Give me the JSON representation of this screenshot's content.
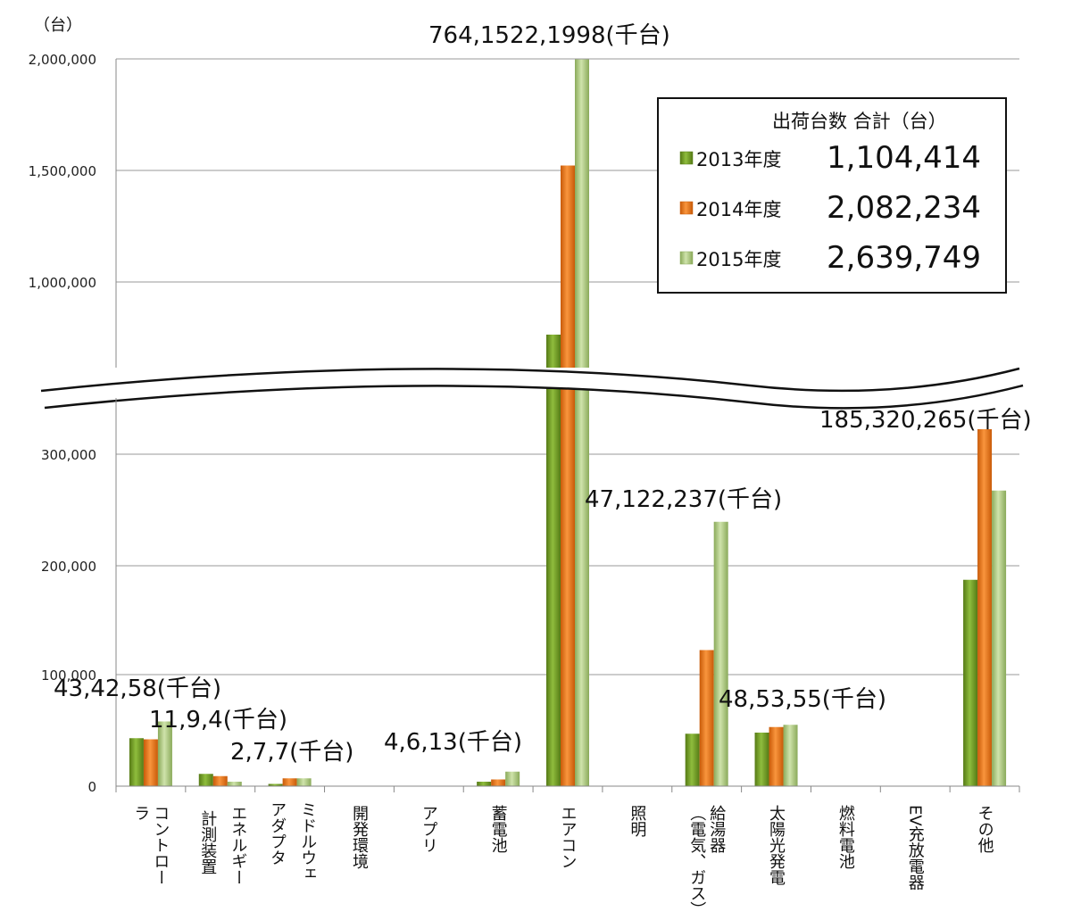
{
  "chart_data": {
    "type": "bar",
    "y_unit": "（台）",
    "y_ticks_upper": [
      "1,000,000",
      "1,500,000",
      "2,000,000"
    ],
    "y_ticks_lower": [
      "0",
      "100,000",
      "200,000",
      "300,000"
    ],
    "axis_break": true,
    "ylim_lower": [
      0,
      350000
    ],
    "ylim_upper": [
      600000,
      2000000
    ],
    "grid": true,
    "categories": [
      "コントローラ",
      "計測装置",
      "エネルギー",
      "アダプタ",
      "ミドルウェ",
      "開発環境",
      "アプリ",
      "蓄電池",
      "エアコン",
      "照明",
      "給湯器（電気、ガス）",
      "太陽光発電",
      "燃料電池",
      "EV充放電器",
      "その他"
    ],
    "category_lines": [
      [
        "コントロー",
        "ラ"
      ],
      [
        "計測装置"
      ],
      [
        "エネルギー"
      ],
      [
        "アダプタ"
      ],
      [
        "ミドルウェ"
      ],
      [
        "開発環境"
      ],
      [
        "アプリ"
      ],
      [
        "蓄電池"
      ],
      [
        "エアコン"
      ],
      [
        "照明"
      ],
      [
        "給湯器",
        "（電気、ガス）"
      ],
      [
        "太陽光発電"
      ],
      [
        "燃料電池"
      ],
      [
        "EV充放電器"
      ],
      [
        "その他"
      ]
    ],
    "slots": [
      {
        "category": "コントローラ",
        "group_index": 0,
        "values": [
          43000,
          42000,
          58000
        ]
      },
      {
        "category": "計測装置",
        "group_index": 1,
        "values": [
          11000,
          9000,
          4000
        ]
      },
      {
        "category": "エネルギー",
        "group_index": 1,
        "values": [
          0,
          0,
          0
        ]
      },
      {
        "category": "アダプタ",
        "group_index": 2,
        "values": [
          2000,
          7000,
          7000
        ]
      },
      {
        "category": "ミドルウェ",
        "group_index": 2,
        "values": [
          0,
          0,
          0
        ]
      },
      {
        "category": "開発環境",
        "group_index": 3,
        "values": [
          0,
          0,
          0
        ]
      },
      {
        "category": "アプリ",
        "group_index": 4,
        "values": [
          0,
          0,
          0
        ]
      },
      {
        "category": "蓄電池",
        "group_index": 5,
        "values": [
          4000,
          6000,
          13000
        ]
      },
      {
        "category": "エアコン",
        "group_index": 6,
        "values": [
          764000,
          1522000,
          1998000
        ]
      },
      {
        "category": "照明",
        "group_index": 7,
        "values": [
          0,
          0,
          0
        ]
      },
      {
        "category": "給湯器（電気、ガス）",
        "group_index": 8,
        "values": [
          47000,
          122000,
          237000
        ]
      },
      {
        "category": "太陽光発電",
        "group_index": 9,
        "values": [
          48000,
          53000,
          55000
        ]
      },
      {
        "category": "燃料電池",
        "group_index": 10,
        "values": [
          0,
          0,
          0
        ]
      },
      {
        "category": "EV充放電器",
        "group_index": 11,
        "values": [
          0,
          0,
          0
        ]
      },
      {
        "category": "その他",
        "group_index": 12,
        "values": [
          185000,
          320000,
          265000
        ]
      }
    ],
    "series": [
      {
        "name": "2013年度",
        "color": "#6f9a25"
      },
      {
        "name": "2014年度",
        "color": "#e8761c"
      },
      {
        "name": "2015年度",
        "color": "#a9c77a"
      }
    ],
    "annotations": [
      "764,1522,1998(千台)",
      "185,320,265(千台)",
      "47,122,237(千台)",
      "48,53,55(千台)",
      "43,42,58(千台)",
      "11,9,4(千台)",
      "2,7,7(千台)",
      "4,6,13(千台)"
    ],
    "legend": {
      "title": "出荷台数  合計（台）",
      "placement": "top-right",
      "entries": [
        {
          "label": "2013年度",
          "total": "1,104,414",
          "color": "#6f9a25"
        },
        {
          "label": "2014年度",
          "total": "2,082,234",
          "color": "#e8761c"
        },
        {
          "label": "2015年度",
          "total": "2,639,749",
          "color": "#a9c77a"
        }
      ]
    }
  }
}
